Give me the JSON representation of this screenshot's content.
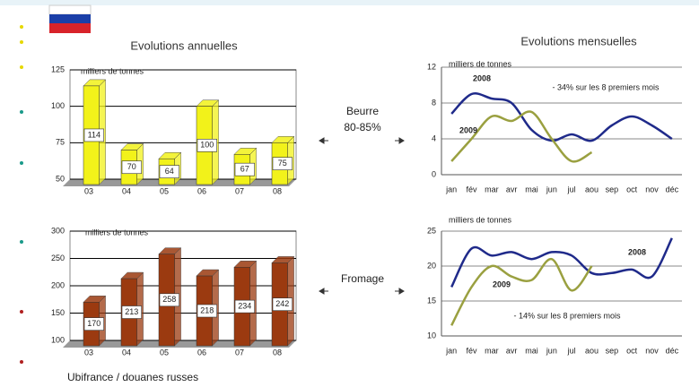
{
  "slide": {
    "left_heading": "Evolutions annuelles",
    "right_heading": "Evolutions mensuelles",
    "butter_label": "Beurre",
    "butter_share": "80-85%",
    "cheese_label": "Fromage",
    "source": "Ubifrance / douanes russes"
  },
  "chart_data": [
    {
      "type": "bar",
      "y_label": "milliers de tonnes",
      "categories": [
        "03",
        "04",
        "05",
        "06",
        "07",
        "08"
      ],
      "values": [
        114,
        70,
        64,
        100,
        67,
        75
      ],
      "color": "#f2f21a",
      "ylim": [
        50,
        125
      ],
      "yticks": [
        50,
        75,
        100,
        125
      ],
      "grid": true
    },
    {
      "type": "bar",
      "y_label": "milliers de tonnes",
      "categories": [
        "03",
        "04",
        "05",
        "06",
        "07",
        "08"
      ],
      "values": [
        170,
        213,
        258,
        218,
        234,
        242
      ],
      "color": "#9b3a10",
      "ylim": [
        100,
        300
      ],
      "yticks": [
        100,
        150,
        200,
        250,
        300
      ],
      "grid": true
    },
    {
      "type": "line",
      "y_label": "milliers de tonnes",
      "annotation": "- 34% sur les 8 premiers mois",
      "categories": [
        "jan",
        "fév",
        "mar",
        "avr",
        "mai",
        "jun",
        "jul",
        "aou",
        "sep",
        "oct",
        "nov",
        "déc"
      ],
      "series": [
        {
          "name": "2008",
          "color": "#1f2a8a",
          "values": [
            6.8,
            9,
            8.5,
            8,
            5,
            3.8,
            4.5,
            3.8,
            5.5,
            6.5,
            5.5,
            4
          ]
        },
        {
          "name": "2009",
          "color": "#9aa040",
          "values": [
            1.5,
            4,
            6.5,
            6,
            7,
            4,
            1.5,
            2.5,
            null,
            null,
            null,
            null
          ]
        }
      ],
      "ylim": [
        0,
        12
      ],
      "yticks": [
        0,
        4,
        8,
        12
      ],
      "grid": true
    },
    {
      "type": "line",
      "y_label": "milliers de tonnes",
      "annotation": "- 14% sur les 8 premiers mois",
      "categories": [
        "jan",
        "fév",
        "mar",
        "avr",
        "mai",
        "jun",
        "jul",
        "aou",
        "sep",
        "oct",
        "nov",
        "déc"
      ],
      "series": [
        {
          "name": "2008",
          "color": "#1f2a8a",
          "values": [
            17,
            22.5,
            21.5,
            22,
            21,
            22,
            21.5,
            19,
            19,
            19.5,
            18.5,
            24
          ]
        },
        {
          "name": "2009",
          "color": "#9aa040",
          "values": [
            11.5,
            17,
            20,
            18.5,
            18,
            21,
            16.5,
            20,
            null,
            null,
            null,
            null
          ]
        }
      ],
      "ylim": [
        10,
        25
      ],
      "yticks": [
        10,
        15,
        20,
        25
      ],
      "grid": true
    }
  ]
}
